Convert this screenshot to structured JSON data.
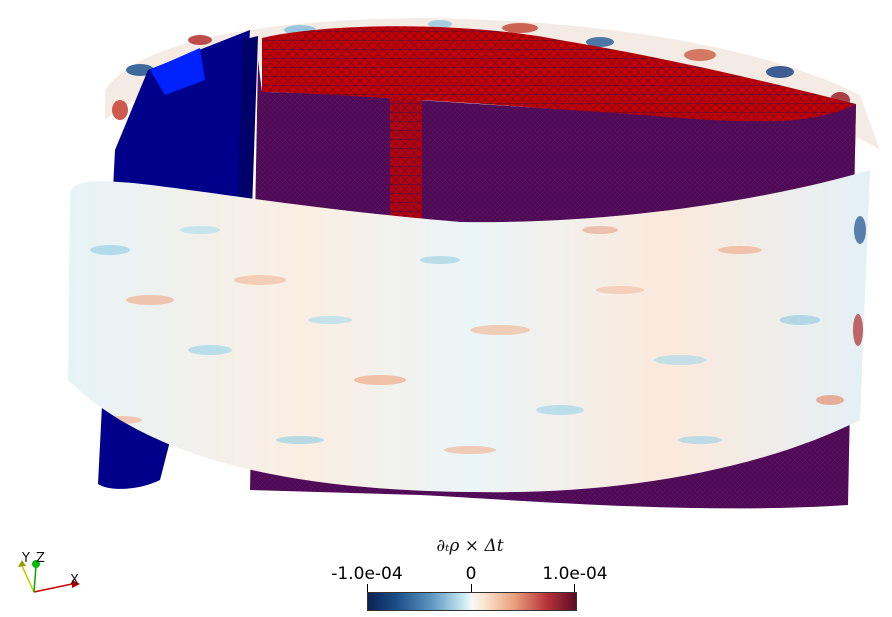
{
  "colorbar": {
    "title": "∂ₜρ × Δt",
    "tick_min": "-1.0e-04",
    "tick_mid": "0",
    "tick_max": "1.0e-04"
  },
  "orientation_axes": {
    "y_label": "Y",
    "z_label": "Z",
    "x_label": "X"
  },
  "colors": {
    "rotor_blade": "#00008b",
    "mesh_top": "#cc0000",
    "mesh_face": "#4a0b5c",
    "colormap_min": "#0a2255",
    "colormap_zero": "#f7f7f7",
    "colormap_max": "#5e0b26"
  }
}
